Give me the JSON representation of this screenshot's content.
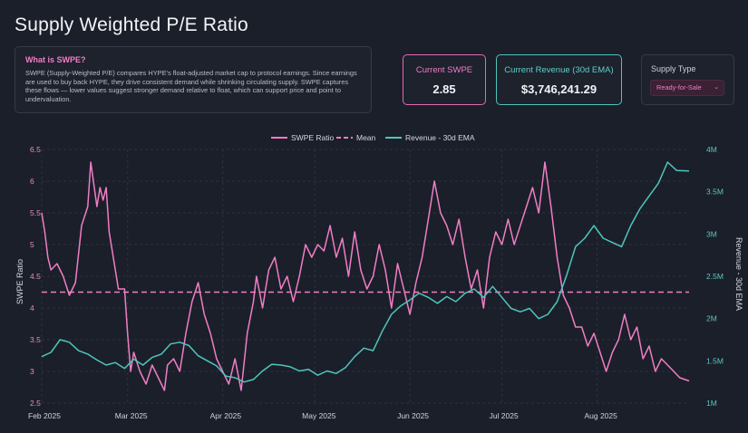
{
  "page": {
    "title": "Supply Weighted P/E Ratio"
  },
  "info": {
    "heading": "What is SWPE?",
    "body": "SWPE (Supply-Weighted P/E) compares HYPE's float-adjusted market cap to protocol earnings. Since earnings are used to buy back HYPE, they drive consistent demand while shrinking circulating supply. SWPE captures these flows — lower values suggest stronger demand relative to float, which can support price and point to undervaluation."
  },
  "kpis": {
    "swpe_label": "Current SWPE",
    "swpe_value": "2.85",
    "revenue_label": "Current Revenue (30d EMA)",
    "revenue_value": "$3,746,241.29"
  },
  "supply": {
    "label": "Supply Type",
    "selected": "Ready-for-Sale"
  },
  "colors": {
    "swpe": "#f07ec5",
    "mean": "#f07ec5",
    "revenue": "#4fc6bd",
    "grid": "#2c3240",
    "background": "#1b1f2a"
  },
  "chart_data": {
    "type": "line",
    "legend": [
      "SWPE Ratio",
      "Mean",
      "Revenue - 30d EMA"
    ],
    "legend_position": "top-center",
    "grid": true,
    "ylabel_left": "SWPE Ratio",
    "ylabel_right": "Revenue - 30d EMA",
    "ylim_left": [
      2.5,
      6.5
    ],
    "ylim_right": [
      1000000,
      4000000
    ],
    "yticks_left": [
      "2.5",
      "3",
      "3.5",
      "4",
      "4.5",
      "5",
      "5.5",
      "6",
      "6.5"
    ],
    "yticks_right": [
      "1M",
      "1.5M",
      "2M",
      "2.5M",
      "3M",
      "3.5M",
      "4M"
    ],
    "xticks": [
      "Feb 2025",
      "Mar 2025",
      "Apr 2025",
      "May 2025",
      "Jun 2025",
      "Jul 2025",
      "Aug 2025"
    ],
    "x_range": [
      "2025-02-01",
      "2025-08-31"
    ],
    "mean": 4.25,
    "series": [
      {
        "name": "SWPE Ratio",
        "axis": "left",
        "points": [
          [
            "2025-02-01",
            5.5
          ],
          [
            "2025-02-02",
            5.2
          ],
          [
            "2025-02-03",
            4.8
          ],
          [
            "2025-02-04",
            4.6
          ],
          [
            "2025-02-06",
            4.7
          ],
          [
            "2025-02-08",
            4.5
          ],
          [
            "2025-02-10",
            4.2
          ],
          [
            "2025-02-12",
            4.4
          ],
          [
            "2025-02-14",
            5.3
          ],
          [
            "2025-02-16",
            5.6
          ],
          [
            "2025-02-17",
            6.3
          ],
          [
            "2025-02-19",
            5.6
          ],
          [
            "2025-02-20",
            5.9
          ],
          [
            "2025-02-21",
            5.7
          ],
          [
            "2025-02-22",
            5.9
          ],
          [
            "2025-02-23",
            5.2
          ],
          [
            "2025-02-25",
            4.6
          ],
          [
            "2025-02-26",
            4.3
          ],
          [
            "2025-02-28",
            4.3
          ],
          [
            "2025-03-01",
            3.6
          ],
          [
            "2025-03-02",
            3.0
          ],
          [
            "2025-03-03",
            3.3
          ],
          [
            "2025-03-05",
            3.0
          ],
          [
            "2025-03-07",
            2.8
          ],
          [
            "2025-03-09",
            3.1
          ],
          [
            "2025-03-11",
            2.9
          ],
          [
            "2025-03-13",
            2.7
          ],
          [
            "2025-03-14",
            3.1
          ],
          [
            "2025-03-16",
            3.2
          ],
          [
            "2025-03-18",
            3.0
          ],
          [
            "2025-03-20",
            3.6
          ],
          [
            "2025-03-22",
            4.1
          ],
          [
            "2025-03-24",
            4.4
          ],
          [
            "2025-03-26",
            3.9
          ],
          [
            "2025-03-28",
            3.6
          ],
          [
            "2025-03-30",
            3.2
          ],
          [
            "2025-04-01",
            3.0
          ],
          [
            "2025-04-03",
            2.8
          ],
          [
            "2025-04-05",
            3.2
          ],
          [
            "2025-04-07",
            2.7
          ],
          [
            "2025-04-09",
            3.6
          ],
          [
            "2025-04-11",
            4.1
          ],
          [
            "2025-04-12",
            4.5
          ],
          [
            "2025-04-14",
            4.0
          ],
          [
            "2025-04-16",
            4.6
          ],
          [
            "2025-04-18",
            4.8
          ],
          [
            "2025-04-20",
            4.3
          ],
          [
            "2025-04-22",
            4.5
          ],
          [
            "2025-04-24",
            4.1
          ],
          [
            "2025-04-26",
            4.5
          ],
          [
            "2025-04-28",
            5.0
          ],
          [
            "2025-04-30",
            4.8
          ],
          [
            "2025-05-02",
            5.0
          ],
          [
            "2025-05-04",
            4.9
          ],
          [
            "2025-05-06",
            5.3
          ],
          [
            "2025-05-08",
            4.8
          ],
          [
            "2025-05-10",
            5.1
          ],
          [
            "2025-05-12",
            4.5
          ],
          [
            "2025-05-14",
            5.2
          ],
          [
            "2025-05-16",
            4.6
          ],
          [
            "2025-05-18",
            4.3
          ],
          [
            "2025-05-20",
            4.5
          ],
          [
            "2025-05-22",
            5.0
          ],
          [
            "2025-05-24",
            4.6
          ],
          [
            "2025-05-26",
            4.0
          ],
          [
            "2025-05-28",
            4.7
          ],
          [
            "2025-05-30",
            4.3
          ],
          [
            "2025-06-01",
            3.9
          ],
          [
            "2025-06-03",
            4.4
          ],
          [
            "2025-06-05",
            4.8
          ],
          [
            "2025-06-07",
            5.4
          ],
          [
            "2025-06-09",
            6.0
          ],
          [
            "2025-06-11",
            5.5
          ],
          [
            "2025-06-13",
            5.3
          ],
          [
            "2025-06-15",
            5.0
          ],
          [
            "2025-06-17",
            5.4
          ],
          [
            "2025-06-19",
            4.8
          ],
          [
            "2025-06-21",
            4.3
          ],
          [
            "2025-06-23",
            4.6
          ],
          [
            "2025-06-25",
            4.0
          ],
          [
            "2025-06-27",
            4.8
          ],
          [
            "2025-06-29",
            5.2
          ],
          [
            "2025-07-01",
            5.0
          ],
          [
            "2025-07-03",
            5.4
          ],
          [
            "2025-07-05",
            5.0
          ],
          [
            "2025-07-07",
            5.3
          ],
          [
            "2025-07-09",
            5.6
          ],
          [
            "2025-07-11",
            5.9
          ],
          [
            "2025-07-13",
            5.5
          ],
          [
            "2025-07-15",
            6.3
          ],
          [
            "2025-07-17",
            5.6
          ],
          [
            "2025-07-19",
            4.8
          ],
          [
            "2025-07-21",
            4.2
          ],
          [
            "2025-07-23",
            4.0
          ],
          [
            "2025-07-25",
            3.7
          ],
          [
            "2025-07-27",
            3.7
          ],
          [
            "2025-07-29",
            3.4
          ],
          [
            "2025-07-31",
            3.6
          ],
          [
            "2025-08-02",
            3.3
          ],
          [
            "2025-08-04",
            3.0
          ],
          [
            "2025-08-06",
            3.3
          ],
          [
            "2025-08-08",
            3.5
          ],
          [
            "2025-08-10",
            3.9
          ],
          [
            "2025-08-12",
            3.5
          ],
          [
            "2025-08-14",
            3.7
          ],
          [
            "2025-08-16",
            3.2
          ],
          [
            "2025-08-18",
            3.4
          ],
          [
            "2025-08-20",
            3.0
          ],
          [
            "2025-08-22",
            3.2
          ],
          [
            "2025-08-24",
            3.1
          ],
          [
            "2025-08-26",
            3.0
          ],
          [
            "2025-08-28",
            2.9
          ],
          [
            "2025-08-31",
            2.85
          ]
        ]
      },
      {
        "name": "Revenue - 30d EMA",
        "axis": "right",
        "points": [
          [
            "2025-02-01",
            1550000
          ],
          [
            "2025-02-04",
            1600000
          ],
          [
            "2025-02-07",
            1750000
          ],
          [
            "2025-02-10",
            1720000
          ],
          [
            "2025-02-13",
            1620000
          ],
          [
            "2025-02-16",
            1580000
          ],
          [
            "2025-02-19",
            1510000
          ],
          [
            "2025-02-22",
            1450000
          ],
          [
            "2025-02-25",
            1480000
          ],
          [
            "2025-02-28",
            1410000
          ],
          [
            "2025-03-03",
            1520000
          ],
          [
            "2025-03-06",
            1450000
          ],
          [
            "2025-03-09",
            1540000
          ],
          [
            "2025-03-12",
            1580000
          ],
          [
            "2025-03-15",
            1700000
          ],
          [
            "2025-03-18",
            1720000
          ],
          [
            "2025-03-21",
            1680000
          ],
          [
            "2025-03-24",
            1560000
          ],
          [
            "2025-03-27",
            1500000
          ],
          [
            "2025-03-30",
            1440000
          ],
          [
            "2025-04-02",
            1320000
          ],
          [
            "2025-04-05",
            1300000
          ],
          [
            "2025-04-08",
            1250000
          ],
          [
            "2025-04-11",
            1280000
          ],
          [
            "2025-04-14",
            1380000
          ],
          [
            "2025-04-17",
            1460000
          ],
          [
            "2025-04-20",
            1450000
          ],
          [
            "2025-04-23",
            1430000
          ],
          [
            "2025-04-26",
            1380000
          ],
          [
            "2025-04-29",
            1400000
          ],
          [
            "2025-05-02",
            1330000
          ],
          [
            "2025-05-05",
            1380000
          ],
          [
            "2025-05-08",
            1350000
          ],
          [
            "2025-05-11",
            1420000
          ],
          [
            "2025-05-14",
            1550000
          ],
          [
            "2025-05-17",
            1650000
          ],
          [
            "2025-05-20",
            1620000
          ],
          [
            "2025-05-23",
            1850000
          ],
          [
            "2025-05-26",
            2050000
          ],
          [
            "2025-05-29",
            2150000
          ],
          [
            "2025-06-01",
            2220000
          ],
          [
            "2025-06-04",
            2300000
          ],
          [
            "2025-06-07",
            2250000
          ],
          [
            "2025-06-10",
            2180000
          ],
          [
            "2025-06-13",
            2260000
          ],
          [
            "2025-06-16",
            2200000
          ],
          [
            "2025-06-19",
            2300000
          ],
          [
            "2025-06-22",
            2350000
          ],
          [
            "2025-06-25",
            2250000
          ],
          [
            "2025-06-28",
            2380000
          ],
          [
            "2025-07-01",
            2250000
          ],
          [
            "2025-07-04",
            2120000
          ],
          [
            "2025-07-07",
            2080000
          ],
          [
            "2025-07-10",
            2120000
          ],
          [
            "2025-07-13",
            2000000
          ],
          [
            "2025-07-16",
            2050000
          ],
          [
            "2025-07-19",
            2200000
          ],
          [
            "2025-07-22",
            2500000
          ],
          [
            "2025-07-25",
            2850000
          ],
          [
            "2025-07-28",
            2950000
          ],
          [
            "2025-07-31",
            3100000
          ],
          [
            "2025-08-03",
            2950000
          ],
          [
            "2025-08-06",
            2900000
          ],
          [
            "2025-08-09",
            2850000
          ],
          [
            "2025-08-12",
            3100000
          ],
          [
            "2025-08-15",
            3300000
          ],
          [
            "2025-08-18",
            3450000
          ],
          [
            "2025-08-21",
            3600000
          ],
          [
            "2025-08-24",
            3850000
          ],
          [
            "2025-08-27",
            3750000
          ],
          [
            "2025-08-31",
            3746241
          ]
        ]
      }
    ]
  }
}
